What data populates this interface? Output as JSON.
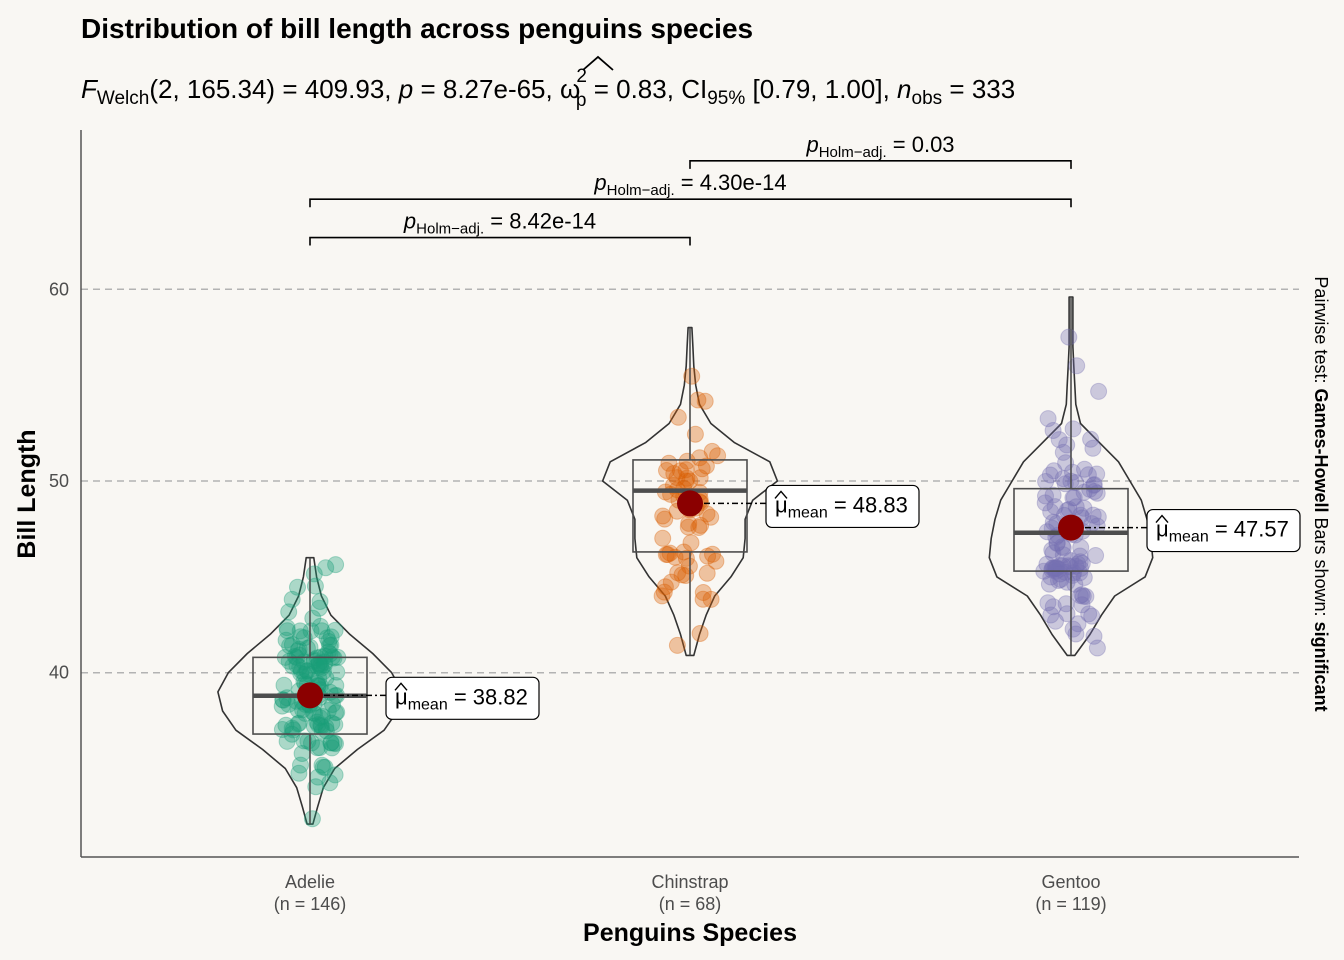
{
  "chart_data": {
    "type": "violin",
    "title": "Distribution of bill length across penguins species",
    "subtitle": {
      "f_symbol": "F",
      "f_sub": "Welch",
      "f_args": "(2, 165.34)",
      "f_value": "409.93",
      "p_symbol": "p",
      "p_value": "8.27e-65",
      "omega_symbol": "ω",
      "omega_sup": "2",
      "omega_sub": "p",
      "omega_value": "0.83",
      "ci_label": "CI",
      "ci_sub": "95%",
      "ci_value": "[0.79, 1.00]",
      "n_symbol": "n",
      "n_sub": "obs",
      "n_value": "333",
      "equals": "=",
      "sep": ","
    },
    "xlabel": "Penguins Species",
    "ylabel": "Bill Length",
    "ylim": [
      31,
      68
    ],
    "yticks": [
      40,
      50,
      60
    ],
    "grid_major_y": true,
    "caption_side": "right",
    "caption_prefix": "Pairwise test: ",
    "caption_test": "Games-Howell",
    "caption_mid": " Bars shown: ",
    "caption_shown": "significant",
    "categories": [
      {
        "name": "Adelie",
        "n_label": "(n = 146)",
        "color": "#1B9E77",
        "mean": 38.82,
        "mean_label": "38.82",
        "box": {
          "q1": 36.8,
          "median": 38.8,
          "q3": 40.8,
          "lower": 32.1,
          "upper": 46.0
        },
        "density": [
          [
            32.1,
            0.03
          ],
          [
            33.0,
            0.08
          ],
          [
            34.0,
            0.14
          ],
          [
            35.0,
            0.26
          ],
          [
            36.0,
            0.5
          ],
          [
            37.0,
            0.78
          ],
          [
            38.0,
            0.92
          ],
          [
            39.0,
            0.97
          ],
          [
            40.0,
            0.86
          ],
          [
            41.0,
            0.66
          ],
          [
            42.0,
            0.42
          ],
          [
            43.0,
            0.22
          ],
          [
            44.0,
            0.12
          ],
          [
            45.0,
            0.07
          ],
          [
            46.0,
            0.04
          ]
        ]
      },
      {
        "name": "Chinstrap",
        "n_label": "(n = 68)",
        "color": "#D95F02",
        "mean": 48.83,
        "mean_label": "48.83",
        "box": {
          "q1": 46.3,
          "median": 49.5,
          "q3": 51.1,
          "lower": 40.9,
          "upper": 58.0
        },
        "density": [
          [
            40.9,
            0.04
          ],
          [
            42.0,
            0.1
          ],
          [
            43.0,
            0.17
          ],
          [
            44.0,
            0.26
          ],
          [
            45.0,
            0.43
          ],
          [
            46.0,
            0.56
          ],
          [
            47.0,
            0.58
          ],
          [
            48.0,
            0.58
          ],
          [
            49.0,
            0.66
          ],
          [
            50.0,
            0.92
          ],
          [
            51.0,
            0.84
          ],
          [
            52.0,
            0.47
          ],
          [
            53.0,
            0.22
          ],
          [
            54.0,
            0.1
          ],
          [
            55.0,
            0.06
          ],
          [
            56.0,
            0.04
          ],
          [
            57.0,
            0.03
          ],
          [
            58.0,
            0.02
          ]
        ]
      },
      {
        "name": "Gentoo",
        "n_label": "(n = 119)",
        "color": "#7570B3",
        "mean": 47.57,
        "mean_label": "47.57",
        "box": {
          "q1": 45.3,
          "median": 47.3,
          "q3": 49.6,
          "lower": 40.9,
          "upper": 59.6
        },
        "density": [
          [
            40.9,
            0.04
          ],
          [
            42.0,
            0.2
          ],
          [
            43.0,
            0.32
          ],
          [
            44.0,
            0.46
          ],
          [
            45.0,
            0.78
          ],
          [
            46.0,
            0.86
          ],
          [
            47.0,
            0.84
          ],
          [
            48.0,
            0.8
          ],
          [
            49.0,
            0.74
          ],
          [
            50.0,
            0.62
          ],
          [
            51.0,
            0.5
          ],
          [
            52.0,
            0.3
          ],
          [
            53.0,
            0.1
          ],
          [
            54.0,
            0.05
          ],
          [
            55.0,
            0.04
          ],
          [
            56.0,
            0.03
          ],
          [
            57.0,
            0.02
          ],
          [
            59.6,
            0.02
          ]
        ]
      }
    ],
    "mean_symbol": "μ",
    "mean_sub": "mean",
    "mean_color": "#8B0000",
    "pairwise": [
      {
        "from": 0,
        "to": 1,
        "y": 62.7,
        "label_p": "p",
        "label_sub": "Holm−adj.",
        "label_value": "8.42e-14",
        "label_eq": "= "
      },
      {
        "from": 0,
        "to": 2,
        "y": 64.7,
        "label_p": "p",
        "label_sub": "Holm−adj.",
        "label_value": "4.30e-14",
        "label_eq": "= "
      },
      {
        "from": 1,
        "to": 2,
        "y": 66.7,
        "label_p": "p",
        "label_sub": "Holm−adj.",
        "label_value": "0.03",
        "label_eq": "= "
      }
    ]
  }
}
